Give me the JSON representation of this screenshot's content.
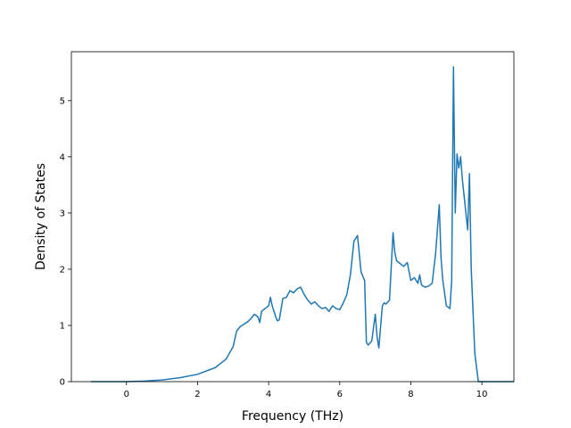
{
  "chart_data": {
    "type": "line",
    "title": "",
    "xlabel": "Frequency (THz)",
    "ylabel": "Density of States",
    "xlim": [
      -1.55,
      10.9
    ],
    "ylim": [
      0,
      5.87
    ],
    "xticks": [
      0,
      2,
      4,
      6,
      8,
      10
    ],
    "yticks": [
      0,
      1,
      2,
      3,
      4,
      5
    ],
    "grid": false,
    "legend": "none",
    "series": [
      {
        "color": "#1f77b4",
        "x": [
          -1.0,
          0.0,
          0.5,
          1.0,
          1.5,
          2.0,
          2.5,
          2.8,
          3.0,
          3.1,
          3.2,
          3.3,
          3.4,
          3.5,
          3.6,
          3.7,
          3.75,
          3.8,
          3.9,
          4.0,
          4.05,
          4.1,
          4.2,
          4.25,
          4.3,
          4.4,
          4.5,
          4.6,
          4.7,
          4.8,
          4.9,
          5.0,
          5.1,
          5.2,
          5.3,
          5.4,
          5.5,
          5.6,
          5.7,
          5.8,
          5.9,
          6.0,
          6.1,
          6.2,
          6.3,
          6.4,
          6.5,
          6.6,
          6.7,
          6.75,
          6.8,
          6.9,
          7.0,
          7.05,
          7.1,
          7.2,
          7.25,
          7.3,
          7.4,
          7.5,
          7.55,
          7.6,
          7.7,
          7.8,
          7.9,
          8.0,
          8.1,
          8.2,
          8.25,
          8.3,
          8.4,
          8.5,
          8.6,
          8.7,
          8.8,
          8.85,
          8.9,
          9.0,
          9.1,
          9.15,
          9.2,
          9.25,
          9.3,
          9.35,
          9.4,
          9.45,
          9.5,
          9.6,
          9.65,
          9.7,
          9.8,
          9.9,
          10.0,
          10.5,
          10.9
        ],
        "y": [
          0,
          0,
          0.01,
          0.03,
          0.07,
          0.13,
          0.25,
          0.4,
          0.62,
          0.9,
          0.98,
          1.02,
          1.06,
          1.12,
          1.2,
          1.15,
          1.05,
          1.25,
          1.3,
          1.35,
          1.5,
          1.35,
          1.15,
          1.08,
          1.1,
          1.48,
          1.5,
          1.62,
          1.58,
          1.65,
          1.68,
          1.55,
          1.45,
          1.38,
          1.42,
          1.35,
          1.3,
          1.32,
          1.25,
          1.35,
          1.3,
          1.28,
          1.4,
          1.55,
          1.9,
          2.5,
          2.6,
          1.95,
          1.8,
          0.7,
          0.65,
          0.72,
          1.2,
          0.8,
          0.6,
          1.35,
          1.4,
          1.38,
          1.45,
          2.65,
          2.3,
          2.15,
          2.1,
          2.05,
          2.12,
          1.8,
          1.85,
          1.75,
          1.9,
          1.72,
          1.68,
          1.7,
          1.75,
          2.3,
          3.15,
          2.2,
          1.8,
          1.35,
          1.3,
          1.8,
          5.6,
          3.0,
          4.05,
          3.8,
          4.0,
          3.6,
          3.3,
          2.7,
          3.7,
          2.0,
          0.5,
          0,
          0,
          0,
          0
        ]
      }
    ]
  }
}
